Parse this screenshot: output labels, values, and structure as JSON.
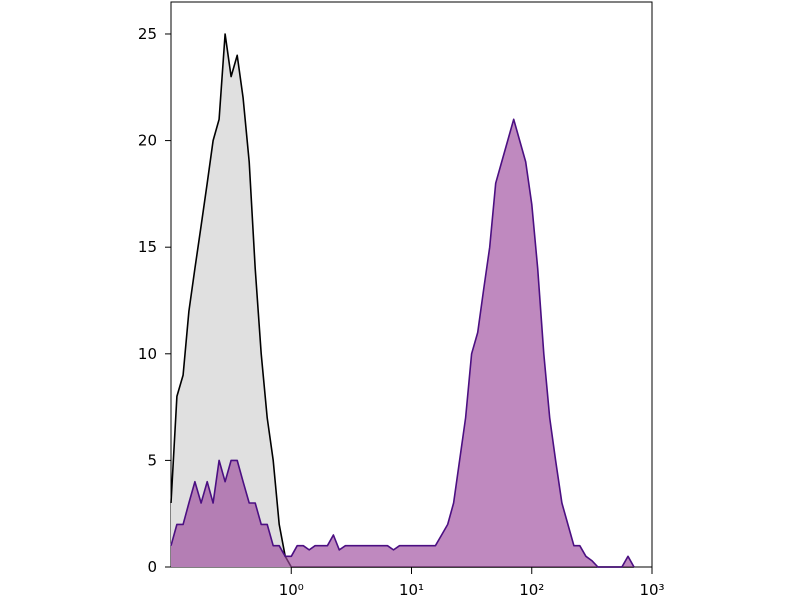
{
  "chart_data": {
    "type": "histogram-overlay",
    "x": [
      0.1,
      0.112,
      0.126,
      0.141,
      0.158,
      0.178,
      0.2,
      0.224,
      0.251,
      0.282,
      0.316,
      0.355,
      0.398,
      0.447,
      0.501,
      0.562,
      0.631,
      0.708,
      0.794,
      0.891,
      1,
      1.12,
      1.26,
      1.41,
      1.58,
      1.78,
      2,
      2.24,
      2.51,
      2.82,
      3.16,
      3.55,
      3.98,
      4.47,
      5.01,
      5.62,
      6.31,
      7.08,
      7.94,
      8.91,
      10,
      11.2,
      12.6,
      14.1,
      15.8,
      17.8,
      20,
      22.4,
      25.1,
      28.2,
      31.6,
      35.5,
      39.8,
      44.7,
      50.1,
      56.2,
      63.1,
      70.8,
      79.4,
      89.1,
      100,
      112,
      126,
      141,
      158,
      178,
      200,
      224,
      251,
      282,
      316,
      355,
      398,
      447,
      501,
      562,
      631,
      708
    ],
    "series": [
      {
        "color": "#000000",
        "fill": "#e0e0e0",
        "fill_opacity": 1,
        "values": [
          3,
          8,
          9,
          12,
          14,
          16,
          18,
          20,
          21,
          25,
          23,
          24,
          22,
          19,
          14,
          10,
          7,
          5,
          2,
          0.5,
          0,
          0,
          0,
          0,
          0,
          0,
          0,
          0,
          0,
          0,
          0,
          0,
          0,
          0,
          0,
          0,
          0,
          0,
          0,
          0,
          0,
          0,
          0,
          0,
          0,
          0,
          0,
          0,
          0,
          0,
          0,
          0,
          0,
          0,
          0,
          0,
          0,
          0,
          0,
          0,
          0,
          0,
          0,
          0,
          0,
          0,
          0,
          0,
          0,
          0,
          0,
          0,
          0,
          0,
          0,
          0,
          0,
          0
        ]
      },
      {
        "color": "#4b0f82",
        "fill": "#9c4a9c",
        "fill_opacity": 0.65,
        "values": [
          1,
          2,
          2,
          3,
          4,
          3,
          4,
          3,
          5,
          4,
          5,
          5,
          4,
          3,
          3,
          2,
          2,
          1,
          1,
          0.5,
          0.5,
          1,
          1,
          0.8,
          1,
          1,
          1,
          1.5,
          0.8,
          1,
          1,
          1,
          1,
          1,
          1,
          1,
          1,
          0.8,
          1,
          1,
          1,
          1,
          1,
          1,
          1,
          1.5,
          2,
          3,
          5,
          7,
          10,
          11,
          13,
          15,
          18,
          19,
          20,
          21,
          20,
          19,
          17,
          14,
          10,
          7,
          5,
          3,
          2,
          1,
          1,
          0.5,
          0.3,
          0,
          0,
          0,
          0,
          0,
          0.5,
          0
        ]
      }
    ],
    "xlog": true,
    "xlim": [
      0.1,
      1000
    ],
    "xticks": [
      {
        "value": 1,
        "label": "10⁰"
      },
      {
        "value": 10,
        "label": "10¹"
      },
      {
        "value": 100,
        "label": "10²"
      },
      {
        "value": 1000,
        "label": "10³"
      }
    ],
    "ylim": [
      0,
      26.5
    ],
    "yticks": [
      0,
      5,
      10,
      15,
      20,
      25
    ]
  }
}
